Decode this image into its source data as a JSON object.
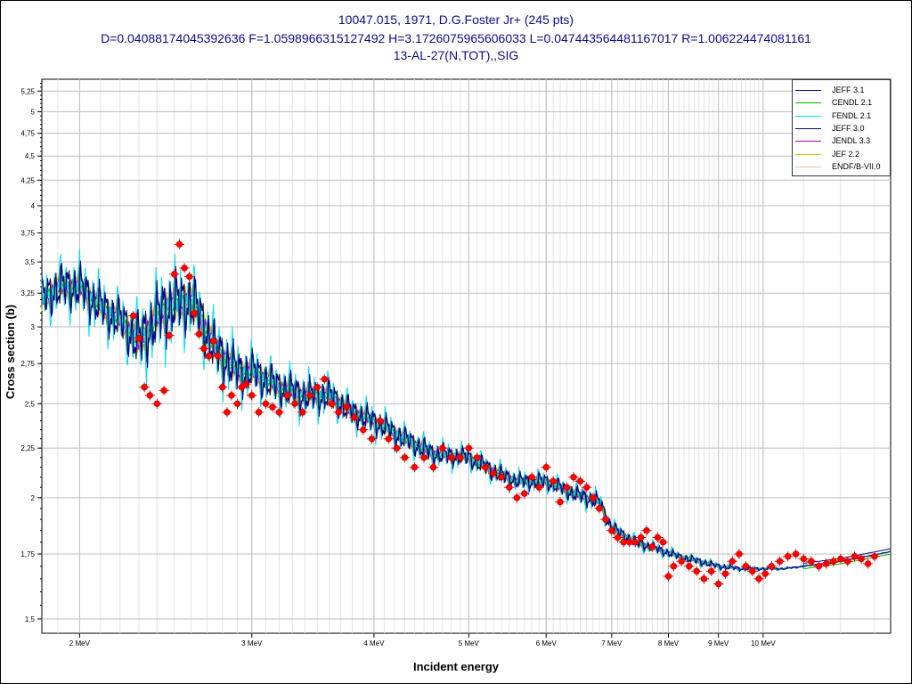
{
  "header": {
    "line1": "10047.015, 1971, D.G.Foster Jr+ (245 pts)",
    "line2": "D=0.04088174045392636 F=1.0598966315127492 H=3.1726075965606033 L=0.047443564481167017 R=1.006224474081161",
    "line3": "13-AL-27(N,TOT),,SIG"
  },
  "chart_data": {
    "type": "line",
    "xlabel": "Incident energy",
    "ylabel": "Cross section (b)",
    "xscale": "log",
    "yscale": "log",
    "xlim": [
      1.83,
      13.5
    ],
    "ylim": [
      1.45,
      5.4
    ],
    "x_ticks": [
      {
        "value": 2,
        "label": "2 MeV"
      },
      {
        "value": 3,
        "label": "3 MeV"
      },
      {
        "value": 4,
        "label": "4 MeV"
      },
      {
        "value": 5,
        "label": "5 MeV"
      },
      {
        "value": 6,
        "label": "6 MeV"
      },
      {
        "value": 7,
        "label": "7 MeV"
      },
      {
        "value": 8,
        "label": "8 MeV"
      },
      {
        "value": 9,
        "label": "9 MeV"
      },
      {
        "value": 10,
        "label": "10 MeV"
      }
    ],
    "y_ticks": [
      {
        "value": 1.5,
        "label": "1,5"
      },
      {
        "value": 1.75,
        "label": "1,75"
      },
      {
        "value": 2,
        "label": "2"
      },
      {
        "value": 2.25,
        "label": "2,25"
      },
      {
        "value": 2.5,
        "label": "2,5"
      },
      {
        "value": 2.75,
        "label": "2,75"
      },
      {
        "value": 3,
        "label": "3"
      },
      {
        "value": 3.25,
        "label": "3,25"
      },
      {
        "value": 3.5,
        "label": "3,5"
      },
      {
        "value": 3.75,
        "label": "3,75"
      },
      {
        "value": 4,
        "label": "4"
      },
      {
        "value": 4.25,
        "label": "4,25"
      },
      {
        "value": 4.5,
        "label": "4,5"
      },
      {
        "value": 4.75,
        "label": "4,75"
      },
      {
        "value": 5,
        "label": "5"
      },
      {
        "value": 5.25,
        "label": "5,25"
      }
    ],
    "grid": true,
    "legend_position": "top-right",
    "series": [
      {
        "name": "JEFF 3.1",
        "color": "#0000a0",
        "role": "evaluation"
      },
      {
        "name": "CENDL 2.1",
        "color": "#00c000",
        "role": "evaluation"
      },
      {
        "name": "FENDL 2.1",
        "color": "#00e0e0",
        "role": "evaluation"
      },
      {
        "name": "JEFF 3.0",
        "color": "#101040",
        "role": "evaluation"
      },
      {
        "name": "JENDL 3.3",
        "color": "#b000b0",
        "role": "evaluation"
      },
      {
        "name": "JEF 2.2",
        "color": "#e0c000",
        "role": "evaluation"
      },
      {
        "name": "ENDF/B-VII.0",
        "color": "#ffb0b0",
        "role": "evaluation"
      }
    ],
    "envelope": {
      "x": [
        1.83,
        1.9,
        2.0,
        2.1,
        2.2,
        2.3,
        2.45,
        2.6,
        2.75,
        2.9,
        3.0,
        3.2,
        3.4,
        3.6,
        3.8,
        4.0,
        4.3,
        4.6,
        5.0,
        5.3,
        5.6,
        6.0,
        6.4,
        6.8,
        7.0,
        7.4,
        7.8,
        8.2,
        8.6,
        9.0,
        9.5,
        10.0,
        10.5,
        11.0,
        12.0,
        13.5
      ],
      "y": [
        3.2,
        3.3,
        3.3,
        3.15,
        3.05,
        2.9,
        3.15,
        3.2,
        2.85,
        2.7,
        2.7,
        2.6,
        2.55,
        2.55,
        2.45,
        2.4,
        2.3,
        2.22,
        2.2,
        2.13,
        2.08,
        2.08,
        2.02,
        1.98,
        1.86,
        1.8,
        1.77,
        1.74,
        1.72,
        1.7,
        1.69,
        1.69,
        1.69,
        1.7,
        1.72,
        1.76
      ],
      "amp": [
        0.2,
        0.22,
        0.22,
        0.2,
        0.2,
        0.25,
        0.3,
        0.28,
        0.22,
        0.18,
        0.16,
        0.14,
        0.13,
        0.12,
        0.1,
        0.09,
        0.08,
        0.07,
        0.06,
        0.06,
        0.05,
        0.05,
        0.05,
        0.05,
        0.04,
        0.03,
        0.025,
        0.02,
        0.02,
        0.015,
        0.01,
        0.008,
        0.005,
        0.004,
        0.003,
        0.002
      ]
    },
    "experimental": {
      "name": "10047.015 D.G.Foster Jr+",
      "color": "#ff0000",
      "x": [
        2.27,
        2.3,
        2.33,
        2.36,
        2.4,
        2.44,
        2.47,
        2.5,
        2.53,
        2.56,
        2.59,
        2.62,
        2.65,
        2.68,
        2.71,
        2.74,
        2.77,
        2.8,
        2.83,
        2.86,
        2.9,
        2.93,
        2.96,
        3.0,
        3.05,
        3.1,
        3.15,
        3.2,
        3.26,
        3.32,
        3.38,
        3.44,
        3.5,
        3.56,
        3.62,
        3.68,
        3.75,
        3.82,
        3.9,
        3.98,
        4.06,
        4.14,
        4.22,
        4.3,
        4.4,
        4.5,
        4.6,
        4.7,
        4.8,
        4.9,
        5.0,
        5.1,
        5.2,
        5.3,
        5.4,
        5.5,
        5.6,
        5.7,
        5.8,
        5.9,
        6.0,
        6.1,
        6.2,
        6.3,
        6.4,
        6.5,
        6.6,
        6.7,
        6.8,
        6.9,
        7.0,
        7.1,
        7.2,
        7.3,
        7.4,
        7.5,
        7.6,
        7.7,
        7.8,
        7.9,
        8.0,
        8.1,
        8.25,
        8.4,
        8.55,
        8.7,
        8.85,
        9.0,
        9.15,
        9.3,
        9.45,
        9.6,
        9.75,
        9.9,
        10.05,
        10.2,
        10.4,
        10.6,
        10.8,
        11.0,
        11.2,
        11.4,
        11.6,
        11.8,
        12.0,
        12.2,
        12.4,
        12.6,
        12.8,
        13.0
      ],
      "y": [
        3.08,
        2.92,
        2.6,
        2.55,
        2.5,
        2.58,
        2.94,
        3.4,
        3.65,
        3.45,
        3.38,
        3.1,
        2.95,
        2.85,
        2.8,
        2.9,
        2.8,
        2.6,
        2.45,
        2.55,
        2.5,
        2.6,
        2.62,
        2.55,
        2.45,
        2.5,
        2.48,
        2.45,
        2.55,
        2.5,
        2.45,
        2.55,
        2.6,
        2.65,
        2.5,
        2.45,
        2.48,
        2.42,
        2.35,
        2.3,
        2.4,
        2.3,
        2.25,
        2.2,
        2.15,
        2.2,
        2.15,
        2.25,
        2.2,
        2.2,
        2.25,
        2.2,
        2.15,
        2.12,
        2.1,
        2.05,
        2.0,
        2.02,
        2.1,
        2.05,
        2.15,
        2.08,
        1.98,
        2.05,
        2.1,
        2.08,
        2.05,
        2.0,
        1.95,
        1.9,
        1.85,
        1.82,
        1.8,
        1.8,
        1.8,
        1.82,
        1.85,
        1.78,
        1.82,
        1.8,
        1.66,
        1.7,
        1.72,
        1.7,
        1.68,
        1.65,
        1.68,
        1.63,
        1.67,
        1.72,
        1.75,
        1.7,
        1.68,
        1.65,
        1.67,
        1.7,
        1.72,
        1.74,
        1.75,
        1.73,
        1.72,
        1.7,
        1.71,
        1.72,
        1.73,
        1.72,
        1.74,
        1.73,
        1.71,
        1.74
      ]
    }
  }
}
